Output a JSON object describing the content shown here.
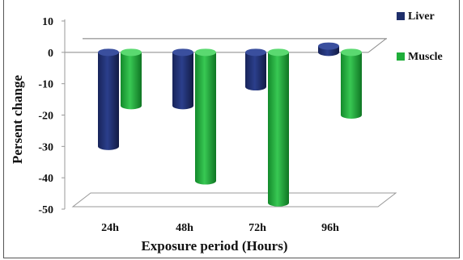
{
  "chart_data": {
    "type": "bar",
    "title": "",
    "xlabel": "Exposure period (Hours)",
    "ylabel": "Persent change",
    "categories": [
      "24h",
      "48h",
      "72h",
      "96h"
    ],
    "series": [
      {
        "name": "Liver",
        "values": [
          -30,
          -17,
          -11,
          2
        ],
        "color": "#1f2f6b"
      },
      {
        "name": "Muscle",
        "values": [
          -17,
          -41,
          -48,
          -20
        ],
        "color": "#1fae3a"
      }
    ],
    "ylim": [
      -50,
      10
    ],
    "yticks": [
      10,
      0,
      -10,
      -20,
      -30,
      -40,
      -50
    ],
    "grid": false,
    "legend_position": "right",
    "style": "3d-cylinder"
  }
}
